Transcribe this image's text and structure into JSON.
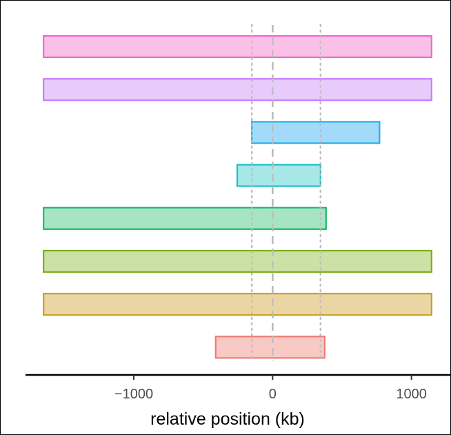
{
  "chart_data": {
    "type": "bar",
    "orientation": "horizontal",
    "title": "",
    "xlabel": "relative position (kb)",
    "ylabel": "",
    "xlim": [
      -1780,
      1280
    ],
    "x_ticks": [
      -1000,
      0,
      1000
    ],
    "x_tick_labels": [
      "−1000",
      "0",
      "1000"
    ],
    "grid": false,
    "legend": "none",
    "reference_lines": [
      {
        "x": 0,
        "style": "dashed",
        "color": "#bdbdbd"
      },
      {
        "x": -150,
        "style": "dotted",
        "color": "#bdbdbd"
      },
      {
        "x": 345,
        "style": "dotted",
        "color": "#bdbdbd"
      }
    ],
    "intervals": [
      {
        "start": -1650,
        "end": 1145,
        "fill": "#fbbde6",
        "stroke": "#f066cf"
      },
      {
        "start": -1650,
        "end": 1145,
        "fill": "#e7c8fb",
        "stroke": "#c77cff"
      },
      {
        "start": -150,
        "end": 770,
        "fill": "#9fd8f9",
        "stroke": "#1ab2ea"
      },
      {
        "start": -255,
        "end": 345,
        "fill": "#a2e6e6",
        "stroke": "#1ac0c6"
      },
      {
        "start": -1650,
        "end": 385,
        "fill": "#a1e3c1",
        "stroke": "#1fba6a"
      },
      {
        "start": -1650,
        "end": 1145,
        "fill": "#c9dfa0",
        "stroke": "#7aae1a"
      },
      {
        "start": -1650,
        "end": 1145,
        "fill": "#e9d49f",
        "stroke": "#c8a020"
      },
      {
        "start": -410,
        "end": 375,
        "fill": "#f8c6c2",
        "stroke": "#f07a6f"
      }
    ]
  }
}
